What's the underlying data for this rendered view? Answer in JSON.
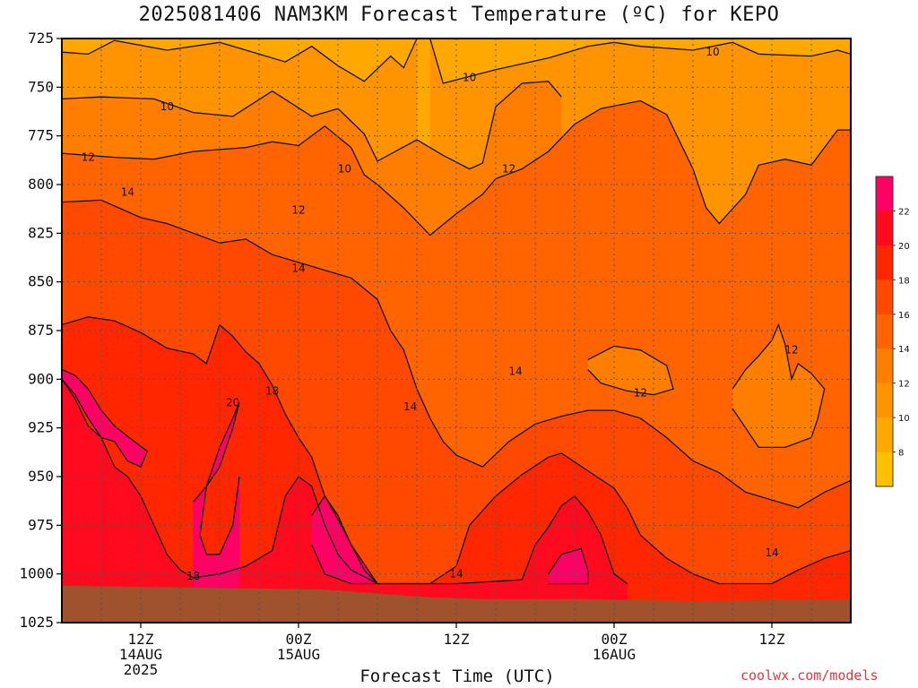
{
  "title": "2025081406 NAM3KM Forecast Temperature (ºC) for KEPO",
  "credit": "coolwx.com/models",
  "chart_data": {
    "type": "heatmap",
    "title": "2025081406 NAM3KM Forecast Temperature (ºC) for KEPO",
    "xlabel": "Forecast Time (UTC)",
    "ylabel": "",
    "y_ticks": [
      725,
      750,
      775,
      800,
      825,
      850,
      875,
      900,
      925,
      950,
      975,
      1000,
      1025
    ],
    "ylim": [
      1025,
      725
    ],
    "x_ticks": [
      {
        "hour": 6,
        "labels": [
          "12Z",
          "14AUG",
          "2025"
        ]
      },
      {
        "hour": 18,
        "labels": [
          "00Z",
          "15AUG"
        ]
      },
      {
        "hour": 30,
        "labels": [
          "12Z"
        ]
      },
      {
        "hour": 42,
        "labels": [
          "00Z",
          "16AUG"
        ]
      },
      {
        "hour": 54,
        "labels": [
          "12Z"
        ]
      }
    ],
    "xlim": [
      0,
      60
    ],
    "x_unit": "forecast hour",
    "colorbar": {
      "ticks": [
        8,
        10,
        12,
        14,
        16,
        18,
        20,
        22
      ],
      "colors": [
        "#ffc000",
        "#ffa800",
        "#ff9400",
        "#ff7e00",
        "#ff6400",
        "#ff4800",
        "#ff2600",
        "#ff0a1e",
        "#ff0064"
      ]
    },
    "contour_labels": [
      {
        "value": "10",
        "x": 8,
        "y": 760
      },
      {
        "value": "12",
        "x": 2,
        "y": 786
      },
      {
        "value": "14",
        "x": 5,
        "y": 804
      },
      {
        "value": "10",
        "x": 21.5,
        "y": 792
      },
      {
        "value": "12",
        "x": 18,
        "y": 813
      },
      {
        "value": "14",
        "x": 18,
        "y": 843
      },
      {
        "value": "18",
        "x": 16,
        "y": 906
      },
      {
        "value": "20",
        "x": 13,
        "y": 912
      },
      {
        "value": "18",
        "x": 10,
        "y": 1001
      },
      {
        "value": "14",
        "x": 26.5,
        "y": 914
      },
      {
        "value": "14",
        "x": 34.5,
        "y": 896
      },
      {
        "value": "12",
        "x": 44,
        "y": 907
      },
      {
        "value": "12",
        "x": 55.5,
        "y": 885
      },
      {
        "value": "14",
        "x": 30,
        "y": 1000
      },
      {
        "value": "14",
        "x": 54,
        "y": 989
      },
      {
        "value": "10",
        "x": 31,
        "y": 745
      },
      {
        "value": "12",
        "x": 34,
        "y": 792
      },
      {
        "value": "10",
        "x": 49.5,
        "y": 732
      }
    ],
    "contours": [
      {
        "level": 10,
        "points": [
          [
            0,
            732
          ],
          [
            2,
            733
          ],
          [
            4,
            726
          ],
          [
            8,
            731
          ],
          [
            12,
            727
          ],
          [
            17,
            737
          ],
          [
            19,
            729
          ],
          [
            21,
            739
          ],
          [
            23,
            747
          ],
          [
            25,
            734
          ],
          [
            26,
            740
          ],
          [
            27,
            725
          ]
        ]
      },
      {
        "level": 10,
        "points": [
          [
            28,
            725
          ],
          [
            29,
            748
          ],
          [
            33,
            741
          ],
          [
            37,
            735
          ],
          [
            40,
            729
          ],
          [
            42,
            727
          ],
          [
            44,
            729
          ],
          [
            48,
            731
          ],
          [
            51,
            727
          ],
          [
            53,
            733
          ],
          [
            57,
            734
          ],
          [
            59,
            731
          ],
          [
            60,
            733
          ]
        ]
      },
      {
        "level": 12,
        "points": [
          [
            0,
            756
          ],
          [
            3,
            755
          ],
          [
            7,
            756
          ],
          [
            10,
            763
          ],
          [
            13,
            765
          ],
          [
            16,
            752
          ],
          [
            19,
            765
          ],
          [
            21,
            761
          ],
          [
            23,
            774
          ],
          [
            24,
            788
          ],
          [
            27,
            777
          ],
          [
            29,
            785
          ],
          [
            31,
            792
          ],
          [
            32,
            789
          ],
          [
            33,
            760
          ],
          [
            35,
            748
          ],
          [
            37,
            747
          ],
          [
            38,
            755
          ]
        ]
      },
      {
        "level": 14,
        "points": [
          [
            0,
            784
          ],
          [
            4,
            786
          ],
          [
            7,
            787
          ],
          [
            10,
            783
          ],
          [
            12,
            782
          ],
          [
            14,
            781
          ],
          [
            16,
            778
          ],
          [
            18,
            780
          ],
          [
            20,
            770
          ],
          [
            22,
            781
          ],
          [
            23,
            795
          ],
          [
            24,
            800
          ],
          [
            26,
            812
          ],
          [
            28,
            826
          ],
          [
            30,
            815
          ],
          [
            32,
            805
          ],
          [
            33,
            797
          ],
          [
            35,
            792
          ],
          [
            37,
            783
          ],
          [
            39,
            769
          ],
          [
            41,
            761
          ],
          [
            44,
            757
          ],
          [
            46,
            764
          ],
          [
            48,
            792
          ],
          [
            49,
            812
          ],
          [
            50,
            820
          ],
          [
            52,
            805
          ],
          [
            53,
            790
          ],
          [
            55,
            787
          ],
          [
            57,
            790
          ],
          [
            59,
            772
          ],
          [
            60,
            772
          ]
        ]
      },
      {
        "level": 16,
        "points": [
          [
            0,
            809
          ],
          [
            3,
            808
          ],
          [
            6,
            817
          ],
          [
            8,
            820
          ],
          [
            10,
            825
          ],
          [
            12,
            830
          ],
          [
            14,
            828
          ],
          [
            16,
            836
          ],
          [
            18,
            840
          ],
          [
            20,
            844
          ],
          [
            22,
            848
          ],
          [
            24,
            859
          ],
          [
            25,
            875
          ],
          [
            26,
            885
          ],
          [
            27,
            905
          ],
          [
            28,
            920
          ],
          [
            29,
            932
          ],
          [
            30,
            939
          ],
          [
            32,
            945
          ],
          [
            34,
            932
          ],
          [
            36,
            923
          ],
          [
            38,
            919
          ],
          [
            40,
            916
          ],
          [
            42,
            916
          ],
          [
            44,
            920
          ],
          [
            46,
            930
          ],
          [
            48,
            942
          ],
          [
            50,
            948
          ],
          [
            52,
            958
          ],
          [
            54,
            962
          ],
          [
            56,
            966
          ],
          [
            58,
            958
          ],
          [
            60,
            952
          ]
        ]
      },
      {
        "level": 18,
        "points": [
          [
            0,
            872
          ],
          [
            2,
            868
          ],
          [
            4,
            870
          ],
          [
            6,
            876
          ],
          [
            8,
            884
          ],
          [
            10,
            887
          ],
          [
            11,
            892
          ],
          [
            12,
            872
          ],
          [
            13,
            878
          ],
          [
            14,
            886
          ],
          [
            15,
            892
          ],
          [
            16,
            903
          ],
          [
            17,
            918
          ],
          [
            18,
            930
          ],
          [
            19,
            940
          ],
          [
            20,
            960
          ],
          [
            21,
            970
          ],
          [
            22,
            985
          ],
          [
            23,
            998
          ],
          [
            24,
            1005
          ],
          [
            28,
            1005
          ],
          [
            30,
            996
          ],
          [
            31,
            975
          ],
          [
            33,
            960
          ],
          [
            35,
            949
          ],
          [
            37,
            940
          ],
          [
            38,
            938
          ],
          [
            40,
            947
          ],
          [
            42,
            956
          ],
          [
            43,
            966
          ],
          [
            44,
            980
          ],
          [
            46,
            992
          ],
          [
            48,
            1000
          ],
          [
            50,
            1005
          ],
          [
            54,
            1005
          ],
          [
            56,
            998
          ],
          [
            58,
            992
          ],
          [
            60,
            988
          ]
        ]
      },
      {
        "level": 20,
        "points": [
          [
            0,
            900
          ],
          [
            1,
            910
          ],
          [
            2,
            924
          ],
          [
            3,
            930
          ],
          [
            4,
            945
          ],
          [
            5,
            950
          ],
          [
            6,
            960
          ],
          [
            7,
            975
          ],
          [
            8,
            990
          ],
          [
            9,
            998
          ],
          [
            10,
            1002
          ],
          [
            12,
            1000
          ],
          [
            14,
            996
          ],
          [
            16,
            988
          ],
          [
            17,
            960
          ],
          [
            18,
            950
          ],
          [
            19,
            955
          ],
          [
            20,
            975
          ],
          [
            21,
            990
          ],
          [
            22,
            998
          ],
          [
            24,
            1005
          ],
          [
            30,
            1005
          ],
          [
            35,
            1003
          ],
          [
            36,
            985
          ],
          [
            37,
            976
          ],
          [
            38,
            965
          ],
          [
            39,
            960
          ],
          [
            40,
            968
          ],
          [
            41,
            980
          ],
          [
            42,
            1000
          ],
          [
            43,
            1005
          ]
        ]
      },
      {
        "level": 22,
        "points": [
          [
            0,
            900
          ],
          [
            1,
            908
          ],
          [
            2,
            920
          ],
          [
            3,
            930
          ],
          [
            4,
            932
          ],
          [
            5,
            942
          ],
          [
            6,
            945
          ],
          [
            6.5,
            937
          ],
          [
            5.5,
            932
          ],
          [
            4,
            924
          ],
          [
            3,
            916
          ],
          [
            2,
            905
          ],
          [
            1,
            898
          ],
          [
            0,
            895
          ]
        ]
      },
      {
        "level": 22,
        "points": [
          [
            10,
            963
          ],
          [
            11,
            955
          ],
          [
            12,
            945
          ],
          [
            13,
            925
          ],
          [
            13.5,
            912
          ],
          [
            13,
            920
          ],
          [
            12,
            935
          ],
          [
            11,
            955
          ],
          [
            10.5,
            980
          ],
          [
            11,
            990
          ],
          [
            12,
            990
          ],
          [
            13,
            975
          ],
          [
            13.5,
            950
          ]
        ]
      },
      {
        "level": 22,
        "points": [
          [
            19,
            970
          ],
          [
            20,
            960
          ],
          [
            21,
            972
          ],
          [
            22,
            985
          ],
          [
            23,
            995
          ],
          [
            24,
            1005
          ],
          [
            22,
            1005
          ],
          [
            20,
            1000
          ],
          [
            19,
            985
          ]
        ]
      },
      {
        "level": 22,
        "points": [
          [
            37,
            1000
          ],
          [
            38,
            990
          ],
          [
            39.5,
            987
          ],
          [
            40,
            998
          ],
          [
            40,
            1005
          ],
          [
            37,
            1005
          ]
        ]
      },
      {
        "level": 12,
        "points": [
          [
            40,
            890
          ],
          [
            42,
            883
          ],
          [
            44,
            885
          ],
          [
            46,
            893
          ],
          [
            46.5,
            905
          ],
          [
            45,
            908
          ],
          [
            43,
            906
          ],
          [
            41,
            902
          ],
          [
            40,
            895
          ]
        ]
      },
      {
        "level": 12,
        "points": [
          [
            51,
            905
          ],
          [
            52,
            895
          ],
          [
            53,
            888
          ],
          [
            54,
            880
          ],
          [
            54.5,
            872
          ],
          [
            55,
            882
          ],
          [
            55.5,
            900
          ],
          [
            56,
            892
          ],
          [
            57,
            897
          ],
          [
            58,
            905
          ],
          [
            57.5,
            920
          ],
          [
            57,
            930
          ],
          [
            55,
            935
          ],
          [
            53,
            935
          ],
          [
            52,
            925
          ],
          [
            51,
            915
          ]
        ]
      }
    ],
    "grid": true,
    "terrain_color": "#a0522d",
    "legend_placement": "right"
  }
}
